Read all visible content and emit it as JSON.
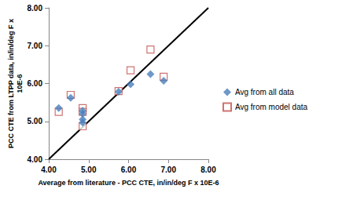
{
  "chart_data": {
    "type": "scatter",
    "x_label": "Average from literature - PCC CTE, in/in/deg F x 10E-6",
    "y_label": "PCC CTE from LTPP data, in/in/deg F x\n10E-6",
    "xlim": [
      4,
      8
    ],
    "ylim": [
      4,
      8
    ],
    "xticks": [
      {
        "value": 4,
        "label": "4.00"
      },
      {
        "value": 5,
        "label": "5.00"
      },
      {
        "value": 6,
        "label": "6.00"
      },
      {
        "value": 7,
        "label": "7.00"
      },
      {
        "value": 8,
        "label": "8.00"
      }
    ],
    "yticks": [
      {
        "value": 4,
        "label": "4.00"
      },
      {
        "value": 5,
        "label": "5.00"
      },
      {
        "value": 6,
        "label": "6.00"
      },
      {
        "value": 7,
        "label": "7.00"
      },
      {
        "value": 8,
        "label": "8.00"
      }
    ],
    "grid": false,
    "legend": "right",
    "series": [
      {
        "name": "Avg from all data",
        "color": "#4a7ebb",
        "marker": "diamond",
        "x": [
          4.25,
          4.55,
          4.85,
          4.85,
          4.85,
          4.85,
          5.75,
          6.05,
          6.55,
          6.88
        ],
        "values": [
          5.35,
          5.62,
          5.28,
          5.2,
          5.05,
          4.97,
          5.78,
          5.98,
          6.25,
          6.07
        ]
      },
      {
        "name": "Avg from model data",
        "color": "#c0504d",
        "marker": "open_square",
        "x": [
          4.25,
          4.55,
          4.85,
          4.85,
          4.85,
          5.75,
          6.05,
          6.55,
          6.88
        ],
        "values": [
          5.25,
          5.7,
          5.35,
          5.25,
          4.87,
          5.8,
          6.35,
          6.9,
          6.18
        ]
      },
      {
        "type": "line",
        "color": "#000000",
        "line_style": "solid",
        "x": [
          4,
          8
        ],
        "values": [
          4,
          8
        ]
      }
    ]
  }
}
